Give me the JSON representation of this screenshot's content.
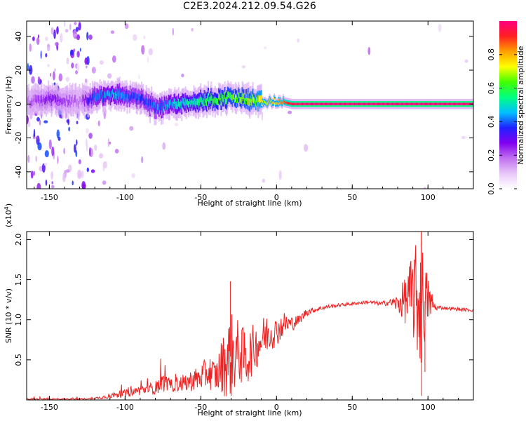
{
  "title": "C2E3.2024.212.09.54.G26",
  "chart_data": [
    {
      "type": "heatmap",
      "title": "C2E3.2024.212.09.54.G26",
      "xlabel": "Height of straight line (km)",
      "ylabel": "Frequency (Hz)",
      "xlim": [
        -165,
        130
      ],
      "ylim": [
        -50,
        49
      ],
      "xticks": [
        -150,
        -100,
        -50,
        0,
        50,
        100
      ],
      "yticks": [
        -40,
        -20,
        0,
        20,
        40
      ],
      "colorbar": {
        "label": "Normalized spectral amplitude",
        "range": [
          0.0,
          1.0
        ],
        "ticks": [
          "0.0",
          "0.2",
          "0.4",
          "0.6",
          "0.8"
        ],
        "colors": [
          "#ffffff",
          "#e8c8f8",
          "#c070f0",
          "#8000f0",
          "#2020ff",
          "#00c0ff",
          "#00ff80",
          "#40ff00",
          "#ffff00",
          "#ffa000",
          "#ff2020",
          "#ff0080"
        ]
      },
      "ridge": {
        "x": [
          -165,
          -150,
          -140,
          -130,
          -120,
          -110,
          -100,
          -90,
          -80,
          -70,
          -60,
          -50,
          -40,
          -30,
          -20,
          -10,
          0,
          10,
          20,
          50,
          100,
          130
        ],
        "frequency": [
          1,
          3,
          2,
          1,
          4,
          6,
          5,
          3,
          -2,
          0,
          1,
          2,
          3,
          4,
          3,
          1,
          2,
          0,
          0,
          0,
          0,
          0
        ],
        "amplitude": [
          0.2,
          0.3,
          0.25,
          0.2,
          0.45,
          0.5,
          0.45,
          0.4,
          0.45,
          0.5,
          0.55,
          0.6,
          0.65,
          0.7,
          0.7,
          0.8,
          0.8,
          0.95,
          1.0,
          1.0,
          1.0,
          1.0
        ]
      }
    },
    {
      "type": "line",
      "xlabel": "Height of straight line (km)",
      "ylabel": "SNR (10 * v/v)",
      "y_multiplier": "(x10^4)",
      "xlim": [
        -165,
        130
      ],
      "ylim": [
        0,
        2.1
      ],
      "xticks": [
        -150,
        -100,
        -50,
        0,
        50,
        100
      ],
      "yticks": [
        0.5,
        1.0,
        1.5,
        2.0
      ],
      "color": "#ee2222",
      "x": [
        -165,
        -150,
        -140,
        -130,
        -120,
        -110,
        -100,
        -90,
        -80,
        -75,
        -70,
        -60,
        -50,
        -45,
        -40,
        -35,
        -30,
        -25,
        -20,
        -15,
        -10,
        -5,
        0,
        5,
        10,
        15,
        20,
        25,
        30,
        40,
        50,
        60,
        70,
        75,
        80,
        85,
        90,
        95,
        100,
        105,
        110,
        120,
        130
      ],
      "y": [
        0.01,
        0.01,
        0.01,
        0.01,
        0.02,
        0.05,
        0.08,
        0.12,
        0.15,
        0.22,
        0.18,
        0.22,
        0.28,
        0.35,
        0.3,
        0.45,
        0.55,
        0.6,
        0.5,
        0.65,
        0.75,
        0.85,
        0.85,
        0.95,
        0.95,
        1.0,
        1.1,
        1.12,
        1.15,
        1.18,
        1.2,
        1.22,
        1.2,
        1.22,
        1.2,
        1.25,
        1.3,
        1.2,
        1.25,
        1.15,
        1.15,
        1.13,
        1.12
      ],
      "spread": [
        0.01,
        0.01,
        0.01,
        0.01,
        0.01,
        0.03,
        0.05,
        0.06,
        0.08,
        0.12,
        0.08,
        0.12,
        0.16,
        0.22,
        0.2,
        0.4,
        0.55,
        0.4,
        0.35,
        0.3,
        0.28,
        0.25,
        0.18,
        0.15,
        0.1,
        0.06,
        0.05,
        0.03,
        0.03,
        0.02,
        0.02,
        0.02,
        0.03,
        0.04,
        0.12,
        0.3,
        0.55,
        0.9,
        0.3,
        0.04,
        0.02,
        0.02,
        0.02
      ],
      "peaks": [
        {
          "x": -30.5,
          "y": 1.48
        },
        {
          "x": 95.5,
          "y": 2.1
        },
        {
          "x": 95.8,
          "y": 0.05
        },
        {
          "x": 91,
          "y": 1.75
        },
        {
          "x": 98,
          "y": 0.35
        }
      ]
    }
  ]
}
